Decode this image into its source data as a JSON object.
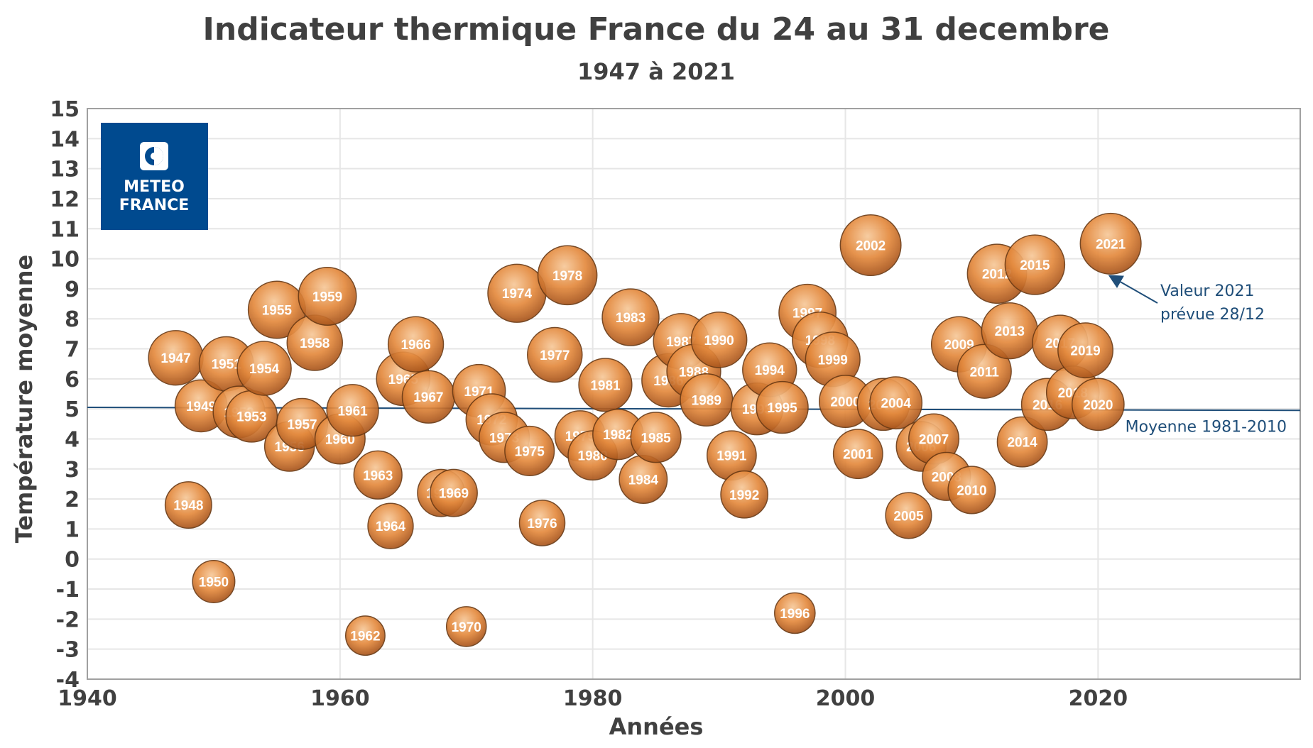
{
  "chart_data": {
    "type": "scatter",
    "title": "Indicateur thermique France du 24 au 31 decembre",
    "subtitle": "1947 à 2021",
    "xlabel": "Années",
    "ylabel": "Température moyenne",
    "xlim": [
      1940,
      2036
    ],
    "ylim": [
      -4,
      15
    ],
    "xticks": [
      1940,
      1960,
      1980,
      2000,
      2020
    ],
    "yticks": [
      -4,
      -3,
      -2,
      -1,
      0,
      1,
      2,
      3,
      4,
      5,
      6,
      7,
      8,
      9,
      10,
      11,
      12,
      13,
      14,
      15
    ],
    "grid": true,
    "bubble_color": "#e58a3c",
    "points": [
      {
        "label": "1947",
        "x": 1947,
        "y": 6.7
      },
      {
        "label": "1948",
        "x": 1948,
        "y": 1.8
      },
      {
        "label": "1949",
        "x": 1949,
        "y": 5.1
      },
      {
        "label": "1950",
        "x": 1950,
        "y": -0.75
      },
      {
        "label": "1951",
        "x": 1951,
        "y": 6.5
      },
      {
        "label": "1952",
        "x": 1952,
        "y": 4.9
      },
      {
        "label": "1953",
        "x": 1953,
        "y": 4.75
      },
      {
        "label": "1954",
        "x": 1954,
        "y": 6.35
      },
      {
        "label": "1955",
        "x": 1955,
        "y": 8.3
      },
      {
        "label": "1956",
        "x": 1956,
        "y": 3.75
      },
      {
        "label": "1957",
        "x": 1957,
        "y": 4.5
      },
      {
        "label": "1958",
        "x": 1958,
        "y": 7.2
      },
      {
        "label": "1959",
        "x": 1959,
        "y": 8.75
      },
      {
        "label": "1960",
        "x": 1960,
        "y": 4.0
      },
      {
        "label": "1961",
        "x": 1961,
        "y": 4.95
      },
      {
        "label": "1962",
        "x": 1962,
        "y": -2.55
      },
      {
        "label": "1963",
        "x": 1963,
        "y": 2.8
      },
      {
        "label": "1964",
        "x": 1964,
        "y": 1.1
      },
      {
        "label": "1965",
        "x": 1965,
        "y": 6.0
      },
      {
        "label": "1966",
        "x": 1966,
        "y": 7.15
      },
      {
        "label": "1967",
        "x": 1967,
        "y": 5.4
      },
      {
        "label": "1968",
        "x": 1968,
        "y": 2.2
      },
      {
        "label": "1969",
        "x": 1969,
        "y": 2.2
      },
      {
        "label": "1970",
        "x": 1970,
        "y": -2.25
      },
      {
        "label": "1971",
        "x": 1971,
        "y": 5.6
      },
      {
        "label": "1972",
        "x": 1972,
        "y": 4.65
      },
      {
        "label": "1973",
        "x": 1973,
        "y": 4.05
      },
      {
        "label": "1974",
        "x": 1974,
        "y": 8.85
      },
      {
        "label": "1975",
        "x": 1975,
        "y": 3.6
      },
      {
        "label": "1976",
        "x": 1976,
        "y": 1.2
      },
      {
        "label": "1977",
        "x": 1977,
        "y": 6.8
      },
      {
        "label": "1978",
        "x": 1978,
        "y": 9.45
      },
      {
        "label": "1979",
        "x": 1979,
        "y": 4.1
      },
      {
        "label": "1980",
        "x": 1980,
        "y": 3.45
      },
      {
        "label": "1981",
        "x": 1981,
        "y": 5.8
      },
      {
        "label": "1982",
        "x": 1982,
        "y": 4.15
      },
      {
        "label": "1983",
        "x": 1983,
        "y": 8.05
      },
      {
        "label": "1984",
        "x": 1984,
        "y": 2.65
      },
      {
        "label": "1985",
        "x": 1985,
        "y": 4.05
      },
      {
        "label": "1986",
        "x": 1986,
        "y": 5.95
      },
      {
        "label": "1987",
        "x": 1987,
        "y": 7.25
      },
      {
        "label": "1988",
        "x": 1988,
        "y": 6.25
      },
      {
        "label": "1989",
        "x": 1989,
        "y": 5.3
      },
      {
        "label": "1990",
        "x": 1990,
        "y": 7.3
      },
      {
        "label": "1991",
        "x": 1991,
        "y": 3.45
      },
      {
        "label": "1992",
        "x": 1992,
        "y": 2.15
      },
      {
        "label": "1993",
        "x": 1993,
        "y": 5.0
      },
      {
        "label": "1994",
        "x": 1994,
        "y": 6.3
      },
      {
        "label": "1995",
        "x": 1995,
        "y": 5.05
      },
      {
        "label": "1996",
        "x": 1996,
        "y": -1.8
      },
      {
        "label": "1997",
        "x": 1997,
        "y": 8.2
      },
      {
        "label": "1998",
        "x": 1998,
        "y": 7.3
      },
      {
        "label": "1999",
        "x": 1999,
        "y": 6.65
      },
      {
        "label": "2000",
        "x": 2000,
        "y": 5.25
      },
      {
        "label": "2001",
        "x": 2001,
        "y": 3.5
      },
      {
        "label": "2002",
        "x": 2002,
        "y": 10.45
      },
      {
        "label": "2003",
        "x": 2003,
        "y": 5.15
      },
      {
        "label": "2004",
        "x": 2004,
        "y": 5.2
      },
      {
        "label": "2005",
        "x": 2005,
        "y": 1.45
      },
      {
        "label": "2006",
        "x": 2006,
        "y": 3.75
      },
      {
        "label": "2007",
        "x": 2007,
        "y": 4.0
      },
      {
        "label": "2008",
        "x": 2008,
        "y": 2.75
      },
      {
        "label": "2009",
        "x": 2009,
        "y": 7.15
      },
      {
        "label": "2010",
        "x": 2010,
        "y": 2.3
      },
      {
        "label": "2011",
        "x": 2011,
        "y": 6.25
      },
      {
        "label": "2012",
        "x": 2012,
        "y": 9.5
      },
      {
        "label": "2013",
        "x": 2013,
        "y": 7.6
      },
      {
        "label": "2014",
        "x": 2014,
        "y": 3.9
      },
      {
        "label": "2015",
        "x": 2015,
        "y": 9.8
      },
      {
        "label": "2016",
        "x": 2016,
        "y": 5.15
      },
      {
        "label": "2017",
        "x": 2017,
        "y": 7.2
      },
      {
        "label": "2018",
        "x": 2018,
        "y": 5.55
      },
      {
        "label": "2019",
        "x": 2019,
        "y": 6.95
      },
      {
        "label": "2020",
        "x": 2020,
        "y": 5.15
      },
      {
        "label": "2021",
        "x": 2021,
        "y": 10.5
      }
    ],
    "reference_line": {
      "label": "Moyenne 1981-2010",
      "y_start": 5.05,
      "y_end": 4.95,
      "color": "#1f4e79"
    },
    "annotation": {
      "lines": [
        "Valeur 2021",
        "prévue 28/12"
      ],
      "points_to": "2021"
    }
  },
  "logo": {
    "line1": "METEO",
    "line2": "FRANCE",
    "bg_color": "#004a8f"
  }
}
